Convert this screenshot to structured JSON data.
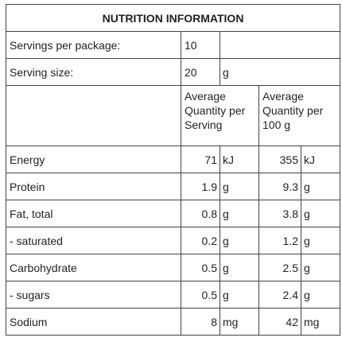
{
  "title": "NUTRITION INFORMATION",
  "servings": {
    "label": "Servings per package:",
    "value": 10
  },
  "serving_size": {
    "label": "Serving size:",
    "value": 20,
    "unit": "g"
  },
  "headers": [
    "Average Quantity per Serving",
    "Average Quantity per 100 g"
  ],
  "rows": [
    {
      "label": "Energy",
      "per_serving": 71,
      "unit_serving": "kJ",
      "per_100g": 355,
      "unit_100g": "kJ"
    },
    {
      "label": "Protein",
      "per_serving": 1.9,
      "unit_serving": "g",
      "per_100g": 9.3,
      "unit_100g": "g"
    },
    {
      "label": "Fat, total",
      "per_serving": 0.8,
      "unit_serving": "g",
      "per_100g": 3.8,
      "unit_100g": "g"
    },
    {
      "label": "- saturated",
      "per_serving": 0.2,
      "unit_serving": "g",
      "per_100g": 1.2,
      "unit_100g": "g"
    },
    {
      "label": "Carbohydrate",
      "per_serving": 0.5,
      "unit_serving": "g",
      "per_100g": 2.5,
      "unit_100g": "g"
    },
    {
      "label": "- sugars",
      "per_serving": 0.5,
      "unit_serving": "g",
      "per_100g": 2.4,
      "unit_100g": "g"
    },
    {
      "label": "Sodium",
      "per_serving": 8,
      "unit_serving": "mg",
      "per_100g": 42,
      "unit_100g": "mg"
    }
  ]
}
